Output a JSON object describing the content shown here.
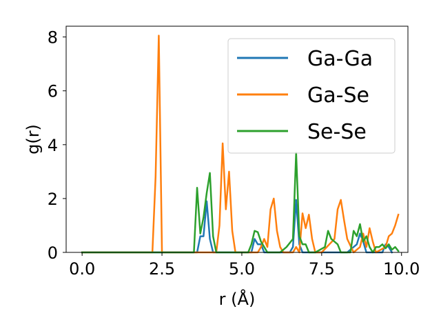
{
  "chart_data": {
    "type": "line",
    "xlabel": "r (Å)",
    "ylabel": "g(r)",
    "xlim": [
      -0.5,
      10.2
    ],
    "ylim": [
      0,
      8.4
    ],
    "xticks": [
      0.0,
      2.5,
      5.0,
      7.5,
      10.0
    ],
    "xtick_labels": [
      "0.0",
      "2.5",
      "5.0",
      "7.5",
      "10.0"
    ],
    "yticks": [
      0,
      2,
      4,
      6,
      8
    ],
    "ytick_labels": [
      "0",
      "2",
      "4",
      "6",
      "8"
    ],
    "grid": false,
    "legend_position": "top-right",
    "series": [
      {
        "name": "Ga-Ga",
        "color": "#1f77b4",
        "x": [
          0.0,
          3.6,
          3.7,
          3.8,
          3.9,
          4.0,
          4.1,
          4.2,
          5.1,
          5.3,
          5.4,
          5.5,
          5.6,
          5.7,
          6.5,
          6.6,
          6.7,
          6.8,
          6.9,
          7.8,
          8.0,
          8.3,
          8.5,
          8.6,
          8.7,
          8.8,
          8.9,
          9.4,
          9.5,
          9.6,
          9.7
        ],
        "y": [
          0.0,
          0.0,
          0.6,
          0.6,
          1.9,
          0.5,
          0.0,
          0.0,
          0.0,
          0.0,
          0.5,
          0.3,
          0.3,
          0.0,
          0.0,
          0.2,
          1.95,
          0.3,
          0.0,
          0.0,
          0.0,
          0.0,
          0.2,
          0.3,
          0.7,
          0.4,
          0.0,
          0.0,
          0.3,
          0.2,
          0.0
        ]
      },
      {
        "name": "Ga-Se",
        "color": "#ff7f0e",
        "x": [
          0.0,
          2.2,
          2.3,
          2.4,
          2.5,
          2.6,
          4.2,
          4.3,
          4.4,
          4.5,
          4.6,
          4.7,
          4.8,
          5.5,
          5.6,
          5.7,
          5.8,
          5.9,
          6.0,
          6.1,
          6.2,
          6.3,
          6.6,
          6.7,
          6.8,
          6.9,
          7.0,
          7.1,
          7.2,
          7.3,
          7.4,
          7.5,
          7.9,
          8.0,
          8.1,
          8.2,
          8.3,
          8.5,
          8.7,
          8.8,
          8.9,
          9.0,
          9.1,
          9.2,
          9.5,
          9.6,
          9.7,
          9.8,
          9.9
        ],
        "y": [
          0.0,
          0.0,
          2.8,
          8.05,
          0.0,
          0.0,
          0.0,
          1.0,
          4.05,
          1.6,
          3.0,
          0.8,
          0.0,
          0.0,
          0.2,
          0.5,
          0.2,
          1.6,
          2.0,
          0.8,
          0.2,
          0.0,
          0.0,
          0.2,
          0.0,
          1.45,
          0.9,
          1.4,
          0.5,
          0.0,
          0.0,
          0.0,
          0.5,
          1.6,
          1.95,
          1.2,
          0.5,
          0.0,
          0.2,
          0.7,
          0.2,
          0.9,
          0.4,
          0.0,
          0.2,
          0.6,
          0.7,
          1.0,
          1.4
        ]
      },
      {
        "name": "Se-Se",
        "color": "#2ca02c",
        "x": [
          0.0,
          3.5,
          3.6,
          3.7,
          3.8,
          3.9,
          4.0,
          4.1,
          4.2,
          5.2,
          5.3,
          5.4,
          5.5,
          5.6,
          5.7,
          5.8,
          6.2,
          6.4,
          6.6,
          6.7,
          6.8,
          6.9,
          7.0,
          7.1,
          7.3,
          7.6,
          7.7,
          7.8,
          8.0,
          8.1,
          8.4,
          8.5,
          8.6,
          8.7,
          8.8,
          8.9,
          9.0,
          9.1,
          9.2,
          9.3,
          9.4,
          9.5,
          9.6,
          9.7,
          9.8,
          9.9
        ],
        "y": [
          0.0,
          0.0,
          2.4,
          0.7,
          1.3,
          2.2,
          2.95,
          0.6,
          0.0,
          0.0,
          0.3,
          0.8,
          0.75,
          0.4,
          0.2,
          0.0,
          0.0,
          0.2,
          0.5,
          3.7,
          0.6,
          0.3,
          0.3,
          0.0,
          0.0,
          0.2,
          0.8,
          0.5,
          0.3,
          0.0,
          0.0,
          0.8,
          0.6,
          1.05,
          0.4,
          0.6,
          0.2,
          0.0,
          0.2,
          0.2,
          0.3,
          0.15,
          0.3,
          0.1,
          0.2,
          0.05
        ]
      }
    ]
  }
}
